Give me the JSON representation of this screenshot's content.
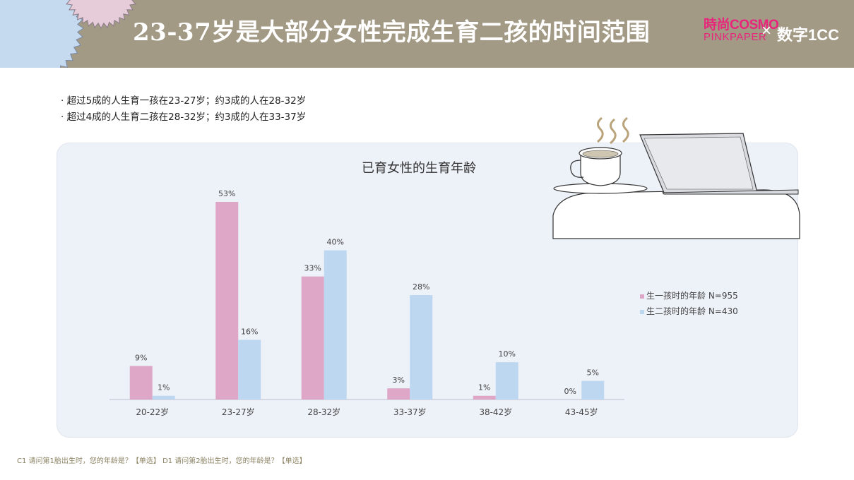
{
  "header": {
    "title": "23-37岁是大部分女性完成生育二孩的时间范围",
    "logo_cosmo_top": "時尚COSMO",
    "logo_cosmo_bottom": "PINKPAPER",
    "logo_separator": "×",
    "logo_shuzi": "数字1CC"
  },
  "bullets": [
    "超过5成的人生育一孩在23-27岁；约3成的人在28-32岁",
    "超过4成的人生育二孩在28-32岁；约3成的人在33-37岁"
  ],
  "colors": {
    "series1": "#dea7c8",
    "series2": "#bdd7f1",
    "header_bg": "#a39a86",
    "panel_bg": "#edf1f8"
  },
  "chart_data": {
    "type": "bar",
    "title": "已育女性的生育年龄",
    "categories": [
      "20-22岁",
      "23-27岁",
      "28-32岁",
      "33-37岁",
      "38-42岁",
      "43-45岁"
    ],
    "series": [
      {
        "name": "生一孩时的年龄 N=955",
        "values": [
          9,
          53,
          33,
          3,
          1,
          0
        ],
        "labels": [
          "9%",
          "53%",
          "33%",
          "3%",
          "1%",
          "0%"
        ]
      },
      {
        "name": "生二孩时的年龄 N=430",
        "values": [
          1,
          16,
          40,
          28,
          10,
          5
        ],
        "labels": [
          "1%",
          "16%",
          "40%",
          "28%",
          "10%",
          "5%"
        ]
      }
    ],
    "ylim": [
      0,
      60
    ],
    "unit": "%",
    "grid": false,
    "legend": "right"
  },
  "footer": "C1 请问第1胎出生时，您的年龄是？【单选】    D1 请问第2胎出生时，您的年龄是？【单选】"
}
